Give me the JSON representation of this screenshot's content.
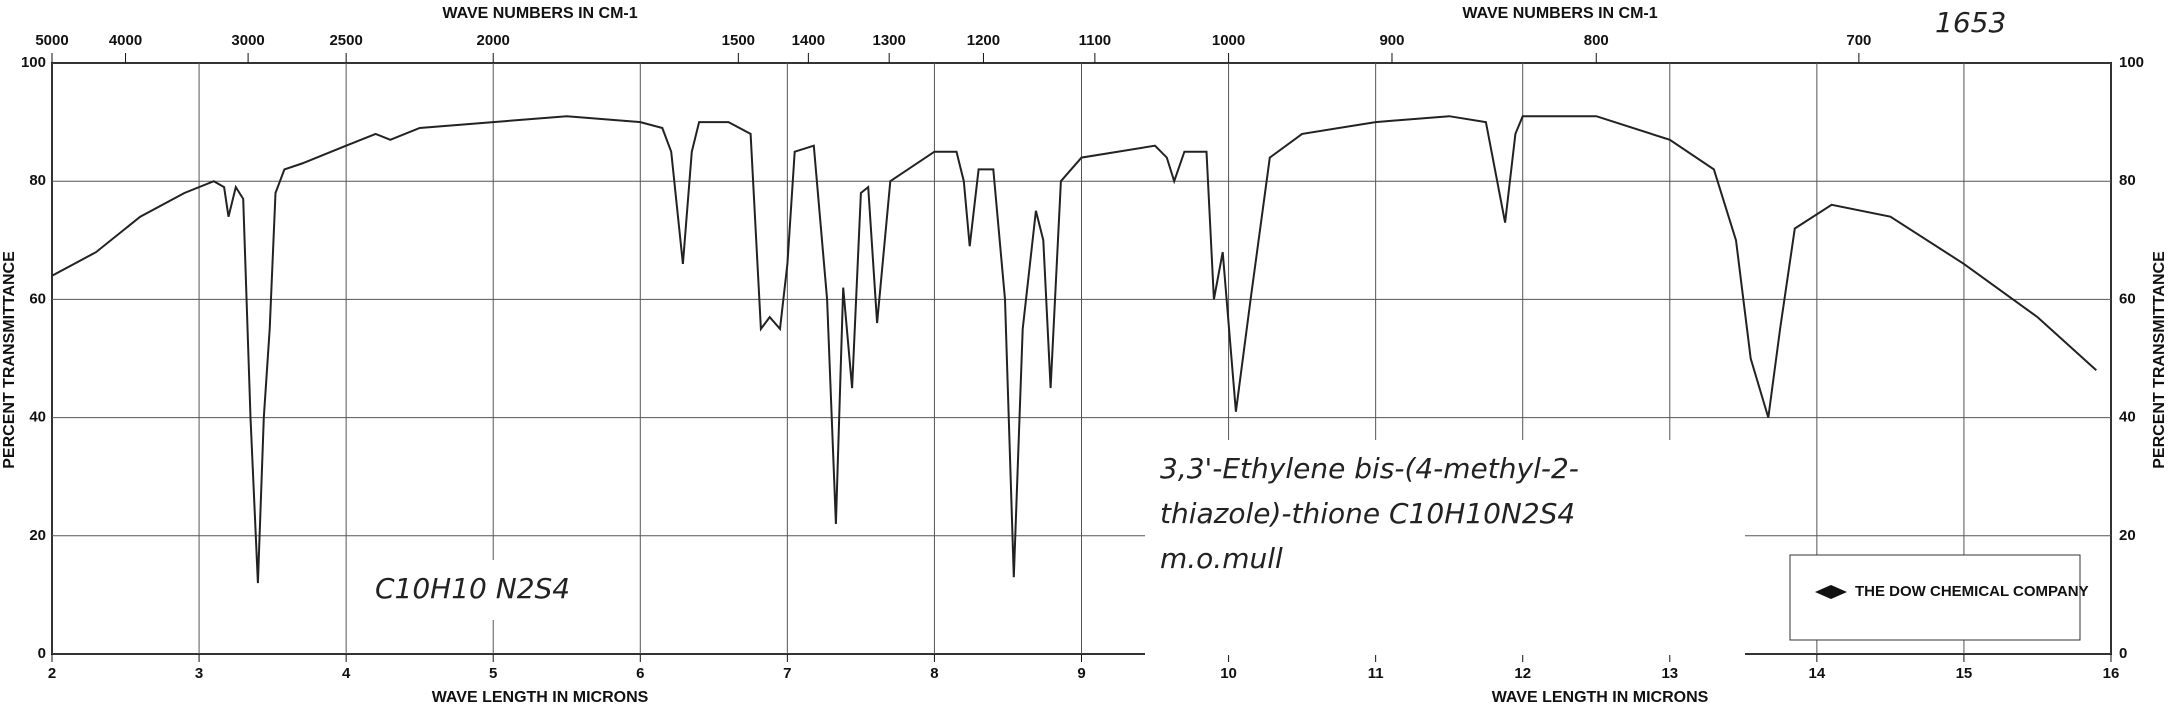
{
  "chart_data": {
    "type": "line",
    "xlabel": "WAVE LENGTH IN MICRONS",
    "x2label": "WAVE NUMBERS IN CM-1",
    "ylabel": "PERCENT TRANSMITTANCE",
    "x": [
      2.0,
      2.3,
      2.6,
      2.9,
      3.1,
      3.17,
      3.2,
      3.25,
      3.3,
      3.35,
      3.4,
      3.44,
      3.48,
      3.52,
      3.58,
      3.7,
      4.0,
      4.2,
      4.3,
      4.5,
      5.0,
      5.5,
      6.0,
      6.15,
      6.21,
      6.29,
      6.35,
      6.4,
      6.6,
      6.75,
      6.82,
      6.88,
      6.95,
      7.0,
      7.05,
      7.18,
      7.27,
      7.33,
      7.38,
      7.44,
      7.5,
      7.55,
      7.61,
      7.7,
      8.0,
      8.15,
      8.2,
      8.24,
      8.3,
      8.4,
      8.48,
      8.54,
      8.6,
      8.69,
      8.74,
      8.79,
      8.86,
      9.0,
      9.5,
      9.58,
      9.63,
      9.7,
      9.85,
      9.9,
      9.96,
      10.05,
      10.15,
      10.28,
      10.5,
      11.0,
      11.5,
      11.75,
      11.88,
      11.95,
      12.0,
      12.5,
      13.0,
      13.3,
      13.45,
      13.55,
      13.67,
      13.75,
      13.85,
      14.1,
      14.5,
      15.0,
      15.5,
      15.9
    ],
    "values": [
      64,
      68,
      74,
      78,
      80,
      79,
      74,
      79,
      77,
      40,
      12,
      40,
      55,
      78,
      82,
      83,
      86,
      88,
      87,
      89,
      90,
      91,
      90,
      89,
      85,
      66,
      85,
      90,
      90,
      88,
      55,
      57,
      55,
      66,
      85,
      86,
      60,
      22,
      62,
      45,
      78,
      79,
      56,
      80,
      85,
      85,
      80,
      69,
      82,
      82,
      60,
      13,
      55,
      75,
      70,
      45,
      80,
      84,
      86,
      84,
      80,
      85,
      85,
      60,
      68,
      41,
      60,
      84,
      88,
      90,
      91,
      90,
      73,
      88,
      91,
      91,
      87,
      82,
      70,
      50,
      40,
      55,
      72,
      76,
      74,
      66,
      57,
      48
    ],
    "color": "#222222",
    "xlim": [
      2,
      16
    ],
    "xticks": [
      2,
      3,
      4,
      5,
      6,
      7,
      8,
      9,
      10,
      11,
      12,
      13,
      14,
      15,
      16
    ],
    "x2ticks": [
      5000,
      4000,
      3000,
      2500,
      2000,
      1500,
      1400,
      1300,
      1200,
      1100,
      1000,
      900,
      800,
      700
    ],
    "ylim": [
      0,
      100
    ],
    "yticks": [
      0,
      20,
      40,
      60,
      80,
      100
    ],
    "grid": true,
    "sample_number": "1653",
    "annotations": [
      "3,3'-Ethylene bis-(4-methyl-2-",
      "thiazole)-thione C10H10N2S4",
      "m.o.mull"
    ],
    "formula_note": "C10H10 N2S4",
    "logo": "THE DOW CHEMICAL COMPANY"
  }
}
